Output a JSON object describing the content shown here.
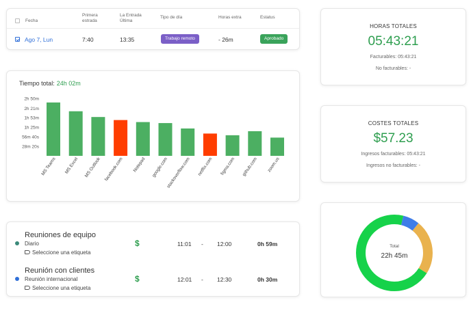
{
  "table": {
    "headers": {
      "fecha": "Fecha",
      "primera": [
        "Primera",
        "estrada"
      ],
      "ultima": [
        "La Entrada",
        "Última"
      ],
      "tipo": "Tipo de día",
      "horas": "Horas extra",
      "estatus": "Estatus"
    },
    "row": {
      "fecha": "Ago 7, Lun",
      "primera": "7:40",
      "ultima": "13:35",
      "tipo": "Trabajo remoto",
      "horas": "- 26m",
      "estatus": "Aprobado"
    },
    "colors": {
      "tipo": "#7b5fc7",
      "estatus": "#3aa35b"
    }
  },
  "chart_data": {
    "type": "bar",
    "title": "Tiempo total:",
    "title_value": "24h 02m",
    "categories": [
      "MS Teams",
      "MS Excel",
      "MS Outlook",
      "facebook.com",
      "Notepad",
      "google.com",
      "stackoverflow.com",
      "netflix.com",
      "figma.com",
      "github.com",
      "zoom.us"
    ],
    "values": [
      158,
      132,
      115,
      106,
      100,
      97,
      81,
      66,
      61,
      73,
      54
    ],
    "highlight": [
      false,
      false,
      false,
      true,
      false,
      false,
      false,
      true,
      false,
      false,
      false
    ],
    "yticks": [
      {
        "label": "2h 50m",
        "value": 170
      },
      {
        "label": "2h 21m",
        "value": 141
      },
      {
        "label": "1h 53m",
        "value": 113
      },
      {
        "label": "1h 25m",
        "value": 85
      },
      {
        "label": "56m 40s",
        "value": 56.67
      },
      {
        "label": "28m 20s",
        "value": 28.33
      }
    ],
    "ylim": [
      0,
      170
    ],
    "colors": {
      "normal": "#4caf62",
      "highlight": "#ff3d00"
    }
  },
  "meetings": [
    {
      "title": "Reuniones de equipo",
      "subtitle": "Diario",
      "tag": "Seleccione una etiqueta",
      "dollar": "$",
      "start": "11:01",
      "sep": "-",
      "end": "12:00",
      "duration": "0h 59m",
      "dot_color": "#3b8a7a"
    },
    {
      "title": "Reunión con clientes",
      "subtitle": "Reunión internacional",
      "tag": "Seleccione una etiqueta",
      "dollar": "$",
      "start": "12:01",
      "sep": "-",
      "end": "12:30",
      "duration": "0h 30m",
      "dot_color": "#2f6fd8"
    }
  ],
  "hours": {
    "title": "HORAS TOTALES",
    "value": "05:43:21",
    "billable": "Facturables: 05:43:21",
    "nonbillable": "No facturables: -"
  },
  "costs": {
    "title": "COSTES TOTALES",
    "value": "$57.23",
    "billable": "Ingresos facturables: 05:43:21",
    "nonbillable": "Ingresos no facturables: -"
  },
  "donut": {
    "label": "Total",
    "value": "22h 45m",
    "segments": [
      {
        "value": 70,
        "color": "#16d24a"
      },
      {
        "value": 23,
        "color": "#e9b24e"
      },
      {
        "value": 7,
        "color": "#3f7de8"
      }
    ]
  }
}
